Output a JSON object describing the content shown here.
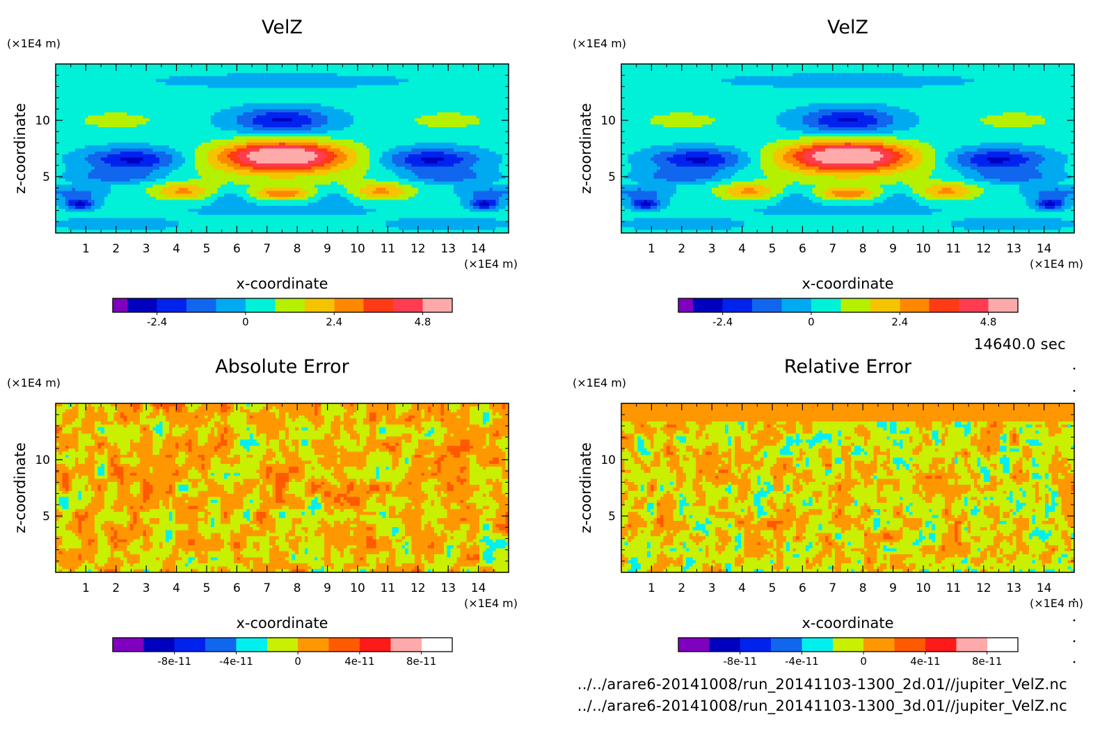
{
  "time_label": "14640.0 sec",
  "footer": {
    "line1": "../../arare6-20141008/run_20141103-1300_2d.01//jupiter_VelZ.nc",
    "line2": "../../arare6-20141008/run_20141103-1300_3d.01//jupiter_VelZ.nc"
  },
  "chart_data": [
    {
      "type": "heatmap",
      "title": "VelZ",
      "xlabel": "x-coordinate",
      "ylabel": "z-coordinate",
      "x_unit": "(×1E4 m)",
      "y_unit": "(×1E4 m)",
      "xlim": [
        0,
        15
      ],
      "ylim": [
        0,
        15
      ],
      "x_ticks": [
        1,
        2,
        3,
        4,
        5,
        6,
        7,
        8,
        9,
        10,
        11,
        12,
        13,
        14
      ],
      "y_ticks": [
        5,
        10
      ],
      "colorbar": {
        "levels": [
          -3.6,
          -3.2,
          -2.4,
          -1.6,
          -0.8,
          0,
          0.8,
          1.6,
          2.4,
          3.2,
          4.0,
          4.8,
          5.6
        ],
        "colors": [
          "#7f00bf",
          "#0000bf",
          "#0022ee",
          "#1166ee",
          "#00aaf0",
          "#00f0d8",
          "#b4f000",
          "#f5c400",
          "#ff8800",
          "#ff3a14",
          "#ff3c50",
          "#ffaaaa"
        ],
        "tick_labels": [
          "-2.4",
          "0",
          "2.4",
          "4.8"
        ],
        "tick_values": [
          -2.4,
          0,
          2.4,
          4.8
        ]
      },
      "field": "velz"
    },
    {
      "type": "heatmap",
      "title": "VelZ",
      "xlabel": "x-coordinate",
      "ylabel": "z-coordinate",
      "x_unit": "(×1E4 m)",
      "y_unit": "(×1E4 m)",
      "xlim": [
        0,
        15
      ],
      "ylim": [
        0,
        15
      ],
      "x_ticks": [
        1,
        2,
        3,
        4,
        5,
        6,
        7,
        8,
        9,
        10,
        11,
        12,
        13,
        14
      ],
      "y_ticks": [
        5,
        10
      ],
      "colorbar": {
        "levels": [
          -3.6,
          -3.2,
          -2.4,
          -1.6,
          -0.8,
          0,
          0.8,
          1.6,
          2.4,
          3.2,
          4.0,
          4.8,
          5.6
        ],
        "colors": [
          "#7f00bf",
          "#0000bf",
          "#0022ee",
          "#1166ee",
          "#00aaf0",
          "#00f0d8",
          "#b4f000",
          "#f5c400",
          "#ff8800",
          "#ff3a14",
          "#ff3c50",
          "#ffaaaa"
        ],
        "tick_labels": [
          "-2.4",
          "0",
          "2.4",
          "4.8"
        ],
        "tick_values": [
          -2.4,
          0,
          2.4,
          4.8
        ]
      },
      "field": "velz"
    },
    {
      "type": "heatmap",
      "title": "Absolute Error",
      "xlabel": "x-coordinate",
      "ylabel": "z-coordinate",
      "x_unit": "(×1E4 m)",
      "y_unit": "(×1E4 m)",
      "xlim": [
        0,
        15
      ],
      "ylim": [
        0,
        15
      ],
      "x_ticks": [
        1,
        2,
        3,
        4,
        5,
        6,
        7,
        8,
        9,
        10,
        11,
        12,
        13,
        14
      ],
      "y_ticks": [
        5,
        10
      ],
      "colorbar": {
        "levels": [
          -1.2e-10,
          -1e-10,
          -8e-11,
          -6e-11,
          -4e-11,
          -2e-11,
          0,
          2e-11,
          4e-11,
          6e-11,
          8e-11,
          1e-10
        ],
        "colors": [
          "#7f00bf",
          "#0000bf",
          "#0022ee",
          "#1166ee",
          "#00f0f0",
          "#c8f000",
          "#ff9800",
          "#ff5a00",
          "#ff1a1a",
          "#ffaaaa"
        ],
        "tick_labels": [
          "-8e-11",
          "-4e-11",
          "0",
          "4e-11",
          "8e-11"
        ],
        "tick_values": [
          -8e-11,
          -4e-11,
          0,
          4e-11,
          8e-11
        ]
      },
      "field": "noise_abs"
    },
    {
      "type": "heatmap",
      "title": "Relative Error",
      "xlabel": "x-coordinate",
      "ylabel": "z-coordinate",
      "x_unit": "(×1E4 m)",
      "y_unit": "(×1E4 m)",
      "xlim": [
        0,
        15
      ],
      "ylim": [
        0,
        15
      ],
      "x_ticks": [
        1,
        2,
        3,
        4,
        5,
        6,
        7,
        8,
        9,
        10,
        11,
        12,
        13,
        14
      ],
      "y_ticks": [
        5,
        10
      ],
      "colorbar": {
        "levels": [
          -1.2e-10,
          -1e-10,
          -8e-11,
          -6e-11,
          -4e-11,
          -2e-11,
          0,
          2e-11,
          4e-11,
          6e-11,
          8e-11,
          1e-10
        ],
        "colors": [
          "#7f00bf",
          "#0000bf",
          "#0022ee",
          "#1166ee",
          "#00f0f0",
          "#c8f000",
          "#ff9800",
          "#ff5a00",
          "#ff1a1a",
          "#ffaaaa"
        ],
        "tick_labels": [
          "-8e-11",
          "-4e-11",
          "0",
          "4e-11",
          "8e-11"
        ],
        "tick_values": [
          -8e-11,
          -4e-11,
          0,
          4e-11,
          8e-11
        ]
      },
      "field": "noise_rel"
    }
  ]
}
